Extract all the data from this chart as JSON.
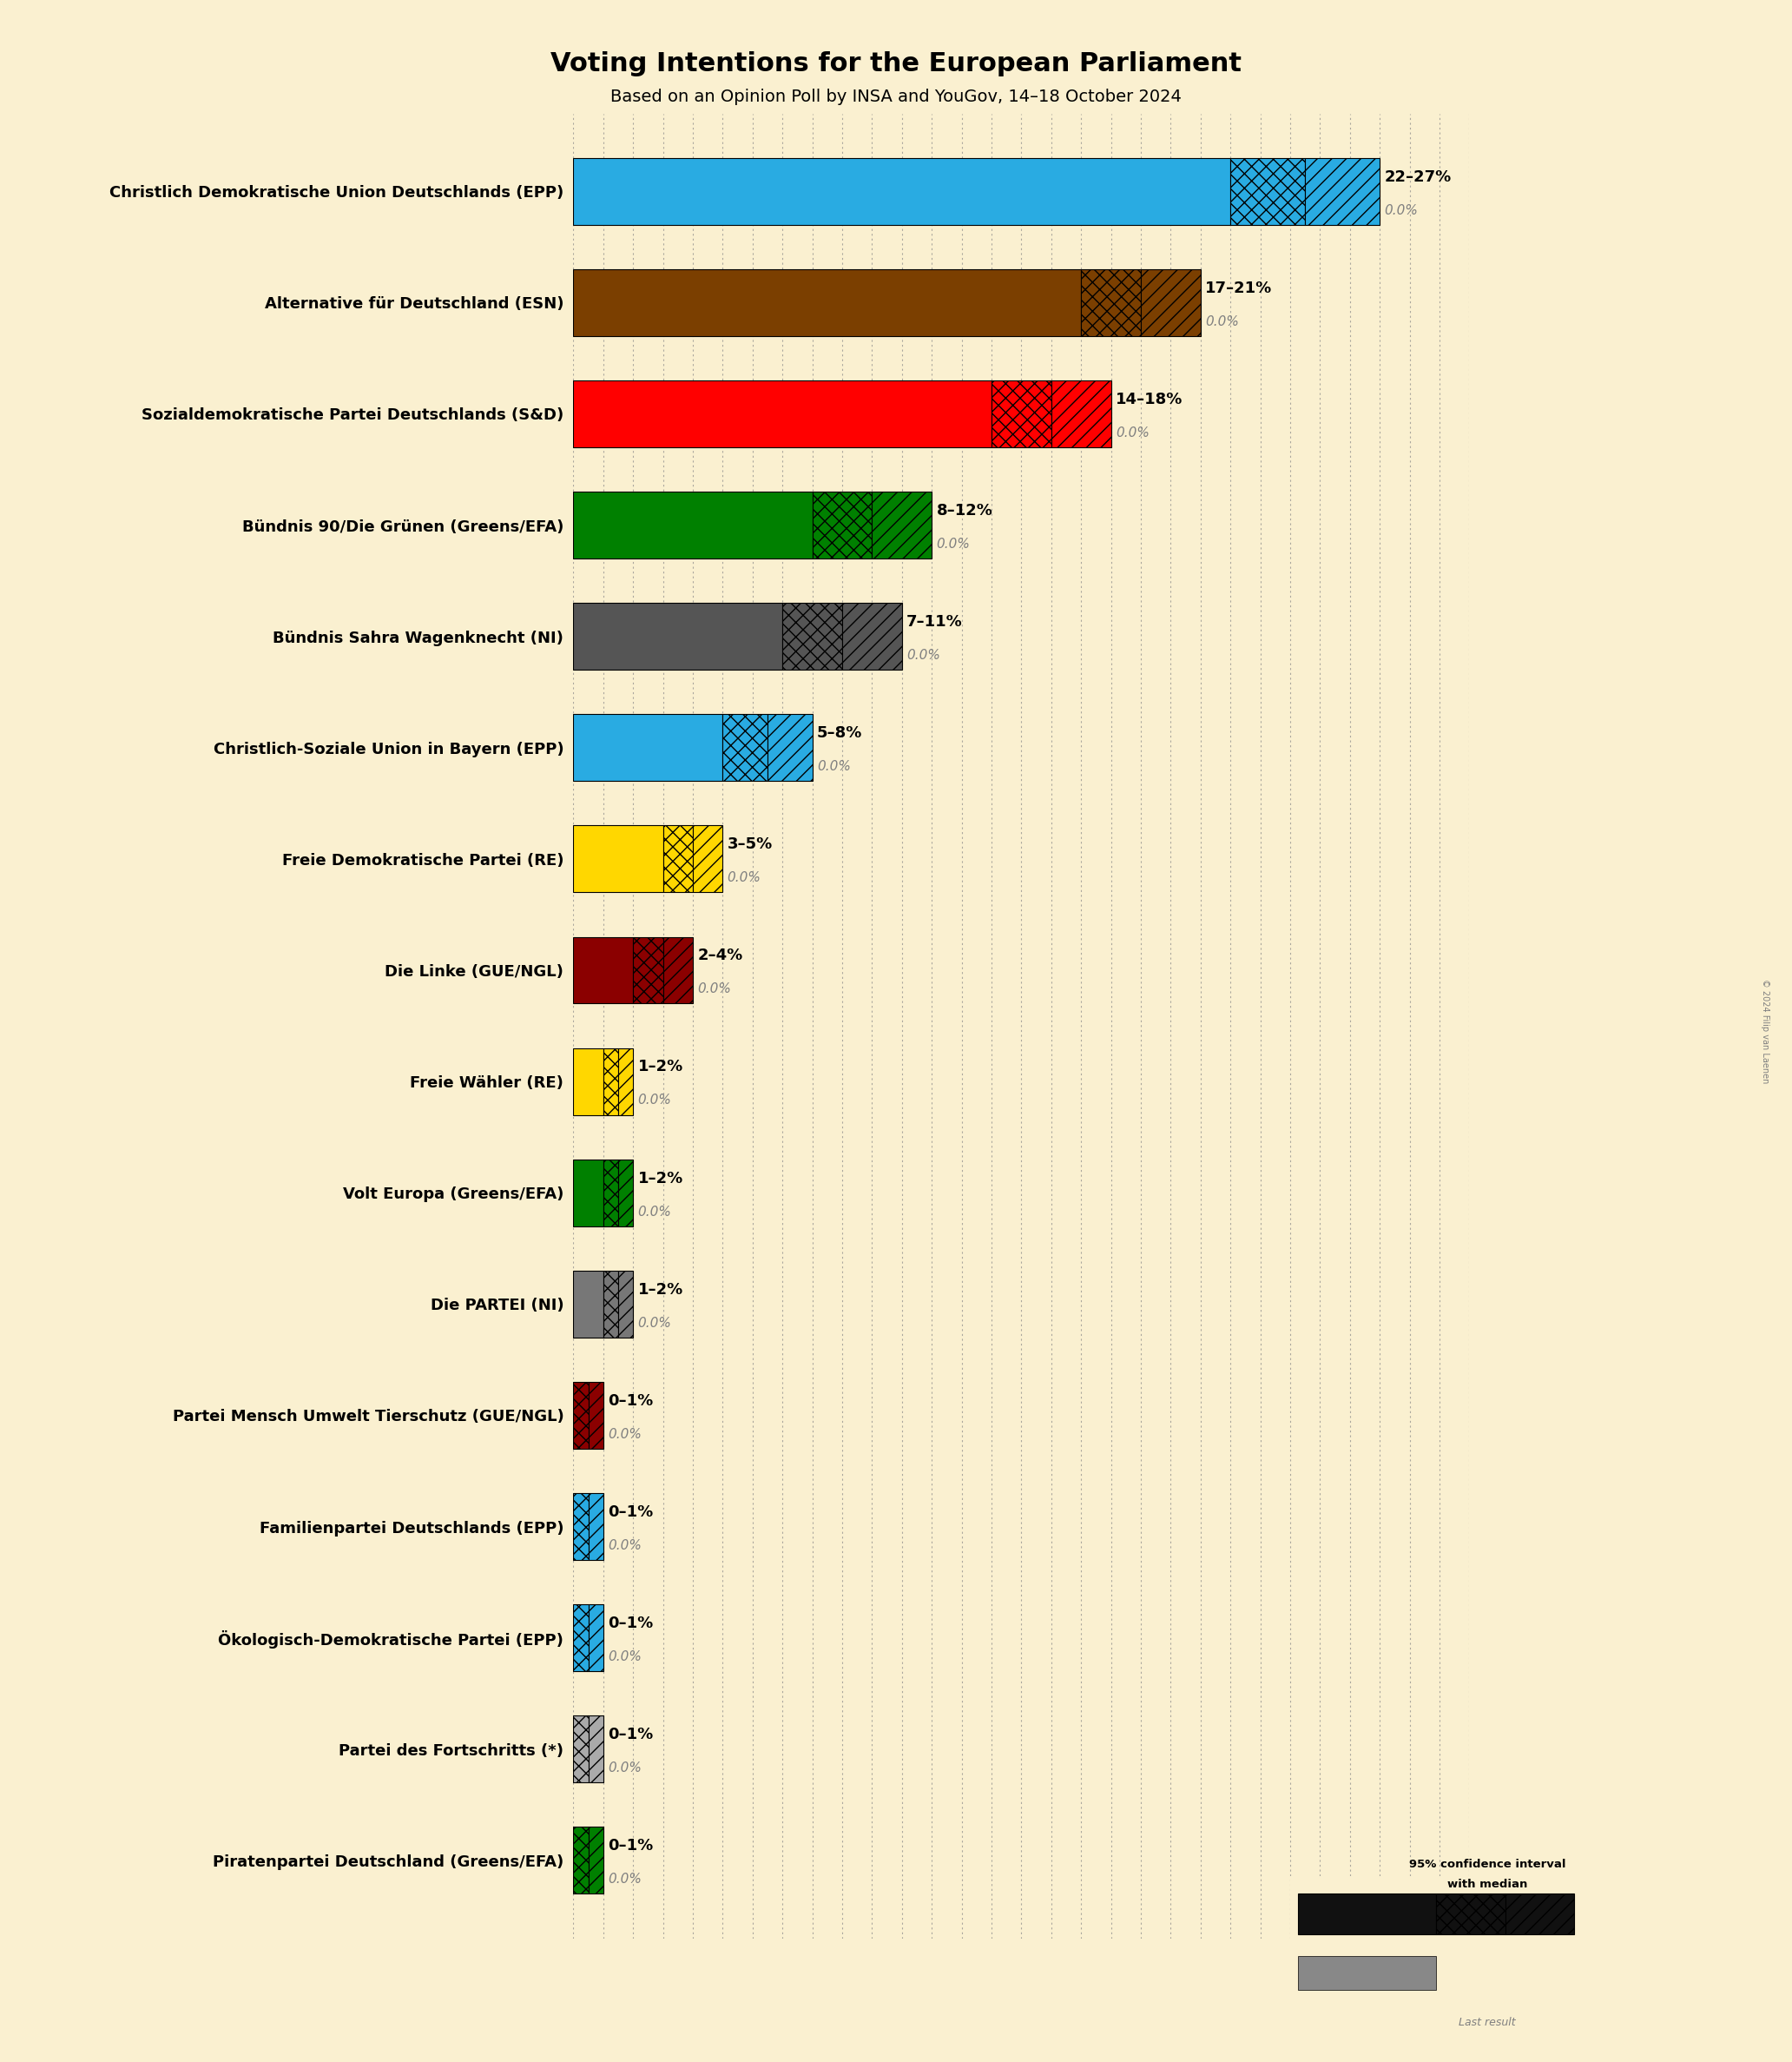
{
  "title": "Voting Intentions for the European Parliament",
  "subtitle": "Based on an Opinion Poll by INSA and YouGov, 14–18 October 2024",
  "background_color": "#FAF0D0",
  "parties": [
    {
      "name": "Christlich Demokratische Union Deutschlands (EPP)",
      "color": "#29ABE2",
      "median": 22,
      "ci_low": 22,
      "ci_high": 27,
      "last_result": 0.0,
      "label": "22–27%"
    },
    {
      "name": "Alternative für Deutschland (ESN)",
      "color": "#7B3F00",
      "median": 17,
      "ci_low": 17,
      "ci_high": 21,
      "last_result": 0.0,
      "label": "17–21%"
    },
    {
      "name": "Sozialdemokratische Partei Deutschlands (S&D)",
      "color": "#FF0000",
      "median": 14,
      "ci_low": 14,
      "ci_high": 18,
      "last_result": 0.0,
      "label": "14–18%"
    },
    {
      "name": "Bündnis 90/Die Grünen (Greens/EFA)",
      "color": "#008000",
      "median": 8,
      "ci_low": 8,
      "ci_high": 12,
      "last_result": 0.0,
      "label": "8–12%"
    },
    {
      "name": "Bündnis Sahra Wagenknecht (NI)",
      "color": "#555555",
      "median": 7,
      "ci_low": 7,
      "ci_high": 11,
      "last_result": 0.0,
      "label": "7–11%"
    },
    {
      "name": "Christlich-Soziale Union in Bayern (EPP)",
      "color": "#29ABE2",
      "median": 5,
      "ci_low": 5,
      "ci_high": 8,
      "last_result": 0.0,
      "label": "5–8%"
    },
    {
      "name": "Freie Demokratische Partei (RE)",
      "color": "#FFD700",
      "median": 3,
      "ci_low": 3,
      "ci_high": 5,
      "last_result": 0.0,
      "label": "3–5%"
    },
    {
      "name": "Die Linke (GUE/NGL)",
      "color": "#8B0000",
      "median": 2,
      "ci_low": 2,
      "ci_high": 4,
      "last_result": 0.0,
      "label": "2–4%"
    },
    {
      "name": "Freie Wähler (RE)",
      "color": "#FFD700",
      "median": 1,
      "ci_low": 1,
      "ci_high": 2,
      "last_result": 0.0,
      "label": "1–2%"
    },
    {
      "name": "Volt Europa (Greens/EFA)",
      "color": "#008000",
      "median": 1,
      "ci_low": 1,
      "ci_high": 2,
      "last_result": 0.0,
      "label": "1–2%"
    },
    {
      "name": "Die PARTEI (NI)",
      "color": "#777777",
      "median": 1,
      "ci_low": 1,
      "ci_high": 2,
      "last_result": 0.0,
      "label": "1–2%"
    },
    {
      "name": "Partei Mensch Umwelt Tierschutz (GUE/NGL)",
      "color": "#8B0000",
      "median": 0,
      "ci_low": 0,
      "ci_high": 1,
      "last_result": 0.0,
      "label": "0–1%"
    },
    {
      "name": "Familienpartei Deutschlands (EPP)",
      "color": "#29ABE2",
      "median": 0,
      "ci_low": 0,
      "ci_high": 1,
      "last_result": 0.0,
      "label": "0–1%"
    },
    {
      "name": "Ökologisch-Demokratische Partei (EPP)",
      "color": "#29ABE2",
      "median": 0,
      "ci_low": 0,
      "ci_high": 1,
      "last_result": 0.0,
      "label": "0–1%"
    },
    {
      "name": "Partei des Fortschritts (*)",
      "color": "#AAAAAA",
      "median": 0,
      "ci_low": 0,
      "ci_high": 1,
      "last_result": 0.0,
      "label": "0–1%"
    },
    {
      "name": "Piratenpartei Deutschland (Greens/EFA)",
      "color": "#008000",
      "median": 0,
      "ci_low": 0,
      "ci_high": 1,
      "last_result": 0.0,
      "label": "0–1%"
    }
  ],
  "xlim": [
    0,
    30
  ],
  "bar_height": 0.6,
  "title_fontsize": 22,
  "subtitle_fontsize": 14,
  "label_fontsize": 14,
  "pct_fontsize": 13,
  "last_fontsize": 11,
  "ytick_fontsize": 13
}
